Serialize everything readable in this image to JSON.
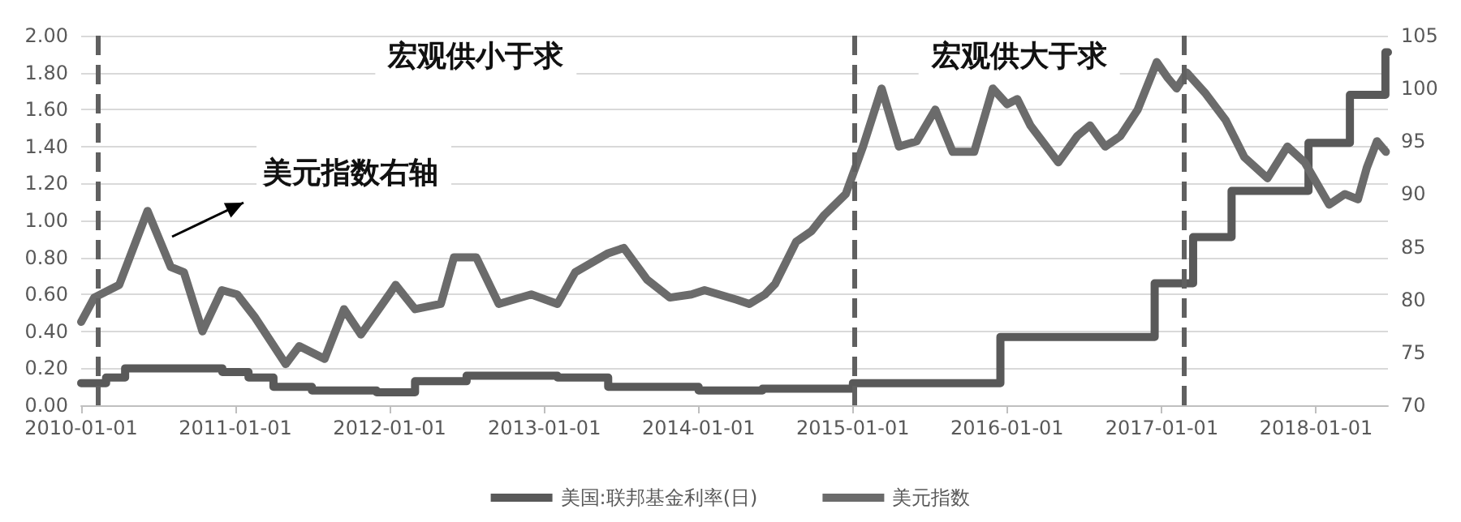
{
  "chart_data": {
    "type": "line",
    "annotations": [
      "宏观供小于求",
      "宏观供大于求",
      "美元指数右轴"
    ],
    "series": [
      {
        "name": "美国:联邦基金利率(日)",
        "type": "step",
        "color": "#595959",
        "x": [
          "2010-01-01",
          "2010-03-01",
          "2010-04-15",
          "2010-12-01",
          "2011-02-01",
          "2011-04-01",
          "2011-07-01",
          "2011-12-01",
          "2012-03-01",
          "2012-07-01",
          "2013-02-01",
          "2013-06-01",
          "2014-01-01",
          "2014-06-01",
          "2015-01-01",
          "2015-12-16",
          "2016-12-15",
          "2017-03-16",
          "2017-06-15",
          "2017-12-14",
          "2018-03-22",
          "2018-06-14",
          "2018-06-20"
        ],
        "values": [
          0.12,
          0.15,
          0.2,
          0.18,
          0.15,
          0.1,
          0.08,
          0.07,
          0.13,
          0.16,
          0.15,
          0.1,
          0.08,
          0.09,
          0.12,
          0.37,
          0.66,
          0.91,
          1.16,
          1.42,
          1.68,
          1.91,
          1.91
        ]
      },
      {
        "name": "美元指数",
        "axis": "y2",
        "color": "#6b6b6b",
        "x": [
          "2010-01-01",
          "2010-02-01",
          "2010-04-01",
          "2010-06-07",
          "2010-08-01",
          "2010-09-01",
          "2010-10-15",
          "2010-11-30",
          "2011-01-05",
          "2011-02-15",
          "2011-04-30",
          "2011-06-01",
          "2011-07-31",
          "2011-09-15",
          "2011-10-25",
          "2011-12-31",
          "2012-01-15",
          "2012-03-01",
          "2012-05-01",
          "2012-06-01",
          "2012-07-24",
          "2012-09-15",
          "2012-12-01",
          "2013-02-01",
          "2013-03-15",
          "2013-06-01",
          "2013-07-08",
          "2013-09-01",
          "2013-10-25",
          "2013-12-15",
          "2014-01-15",
          "2014-04-01",
          "2014-05-01",
          "2014-06-07",
          "2014-07-01",
          "2014-08-20",
          "2014-09-25",
          "2014-10-25",
          "2014-12-15",
          "2015-01-25",
          "2015-03-10",
          "2015-04-20",
          "2015-06-01",
          "2015-07-15",
          "2015-08-25",
          "2015-10-15",
          "2015-11-28",
          "2016-01-01",
          "2016-01-25",
          "2016-02-25",
          "2016-05-01",
          "2016-06-15",
          "2016-07-15",
          "2016-08-20",
          "2016-09-25",
          "2016-11-05",
          "2016-12-20",
          "2017-01-15",
          "2017-02-05",
          "2017-03-01",
          "2017-04-15",
          "2017-06-01",
          "2017-07-15",
          "2017-09-08",
          "2017-10-25",
          "2017-12-05",
          "2018-02-01",
          "2018-03-10",
          "2018-04-10",
          "2018-05-01",
          "2018-05-25",
          "2018-06-15"
        ],
        "values": [
          77.9,
          80.2,
          81.4,
          88.4,
          83.1,
          82.6,
          77,
          80.9,
          80.5,
          78.4,
          73.9,
          75.6,
          74.4,
          79.1,
          76.7,
          80.5,
          81.4,
          79.1,
          79.6,
          84,
          84,
          79.6,
          80.5,
          79.6,
          82.6,
          84.4,
          84.9,
          81.9,
          80.2,
          80.5,
          80.9,
          80,
          79.6,
          80.5,
          81.5,
          85.5,
          86.5,
          88,
          90,
          94.5,
          100,
          94.5,
          95,
          98,
          94,
          94,
          100,
          98.5,
          99,
          96.5,
          93,
          95.5,
          96.5,
          94.5,
          95.5,
          98,
          102.5,
          101,
          100,
          101.5,
          99.5,
          97,
          93.5,
          91.5,
          94.5,
          93,
          89,
          90,
          89.5,
          92.5,
          95,
          94
        ]
      }
    ],
    "xlim": [
      "2010-01-01",
      "2018-06-20"
    ],
    "xticks": [
      "2010-01-01",
      "2011-01-01",
      "2012-01-01",
      "2013-01-01",
      "2014-01-01",
      "2015-01-01",
      "2016-01-01",
      "2017-01-01",
      "2018-01-01"
    ],
    "ylim": [
      0,
      2
    ],
    "yticks": [
      {
        "value": 0,
        "label": "0.00"
      },
      {
        "value": 0.2,
        "label": "0.20"
      },
      {
        "value": 0.4,
        "label": "0.40"
      },
      {
        "value": 0.6,
        "label": "0.60"
      },
      {
        "value": 0.8,
        "label": "0.80"
      },
      {
        "value": 1,
        "label": "1.00"
      },
      {
        "value": 1.2,
        "label": "1.20"
      },
      {
        "value": 1.4,
        "label": "1.40"
      },
      {
        "value": 1.6,
        "label": "1.60"
      },
      {
        "value": 1.8,
        "label": "1.80"
      },
      {
        "value": 2,
        "label": "2.00"
      }
    ],
    "y2lim": [
      70,
      105
    ],
    "y2ticks": [
      70,
      75,
      80,
      85,
      90,
      95,
      100,
      105
    ],
    "ref_lines": [
      {
        "axis": "x",
        "value": "2010-02-08",
        "color": "#606060",
        "line_style": "dashed"
      },
      {
        "axis": "x",
        "value": "2015-01-05",
        "color": "#606060",
        "line_style": "dashed"
      },
      {
        "axis": "x",
        "value": "2017-02-22",
        "color": "#606060",
        "line_style": "dashed"
      }
    ],
    "grid": "y",
    "legend": "bottom",
    "marker": "none",
    "line_style": "solid"
  }
}
